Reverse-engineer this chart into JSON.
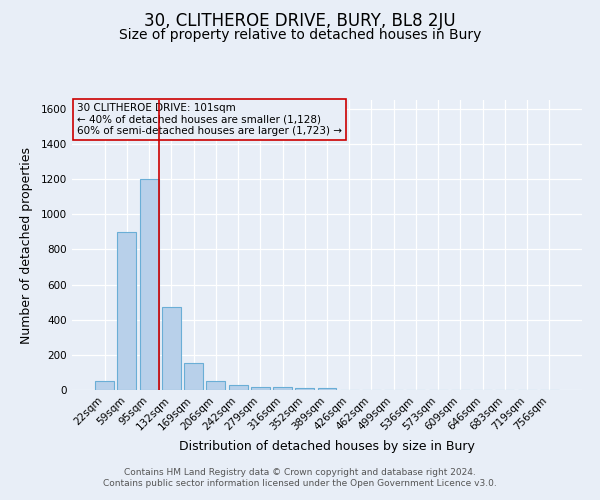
{
  "title": "30, CLITHEROE DRIVE, BURY, BL8 2JU",
  "subtitle": "Size of property relative to detached houses in Bury",
  "xlabel": "Distribution of detached houses by size in Bury",
  "ylabel": "Number of detached properties",
  "footnote1": "Contains HM Land Registry data © Crown copyright and database right 2024.",
  "footnote2": "Contains public sector information licensed under the Open Government Licence v3.0.",
  "annotation_line1": "30 CLITHEROE DRIVE: 101sqm",
  "annotation_line2": "← 40% of detached houses are smaller (1,128)",
  "annotation_line3": "60% of semi-detached houses are larger (1,723) →",
  "bar_labels": [
    "22sqm",
    "59sqm",
    "95sqm",
    "132sqm",
    "169sqm",
    "206sqm",
    "242sqm",
    "279sqm",
    "316sqm",
    "352sqm",
    "389sqm",
    "426sqm",
    "462sqm",
    "499sqm",
    "536sqm",
    "573sqm",
    "609sqm",
    "646sqm",
    "683sqm",
    "719sqm",
    "756sqm"
  ],
  "bar_values": [
    50,
    900,
    1200,
    475,
    155,
    52,
    30,
    18,
    15,
    13,
    13,
    0,
    0,
    0,
    0,
    0,
    0,
    0,
    0,
    0,
    0
  ],
  "bar_color": "#b8d0ea",
  "bar_edge_color": "#6aaed6",
  "red_line_color": "#cc0000",
  "background_color": "#e8eef7",
  "grid_color": "#ffffff",
  "ylim": [
    0,
    1650
  ],
  "yticks": [
    0,
    200,
    400,
    600,
    800,
    1000,
    1200,
    1400,
    1600
  ],
  "title_fontsize": 12,
  "subtitle_fontsize": 10,
  "axis_label_fontsize": 9,
  "tick_fontsize": 7.5,
  "annotation_fontsize": 7.5,
  "footnote_fontsize": 6.5
}
